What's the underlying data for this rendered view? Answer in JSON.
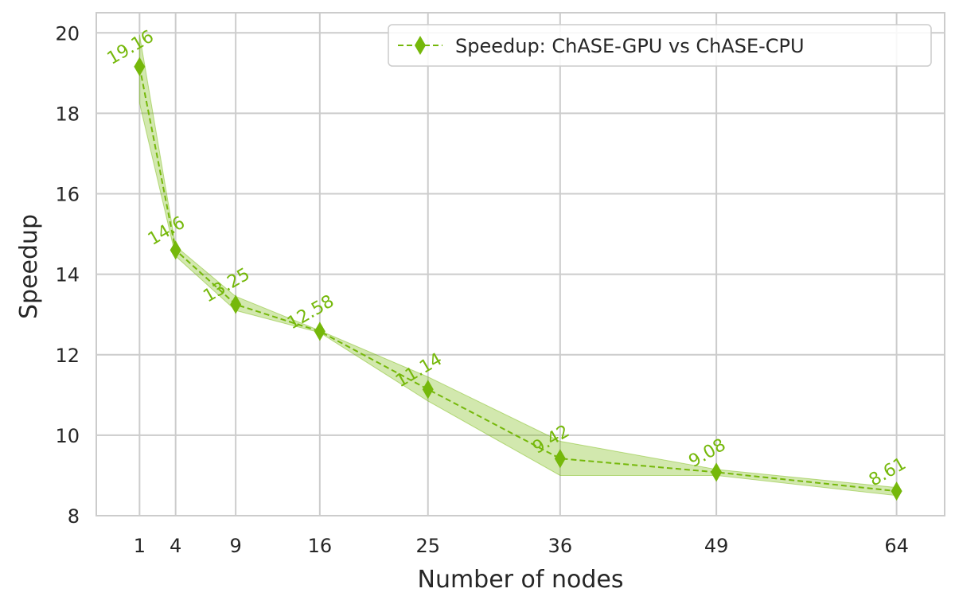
{
  "chart_data": {
    "type": "line",
    "title": "",
    "xlabel": "Number of nodes",
    "ylabel": "Speedup",
    "x": [
      1,
      4,
      9,
      16,
      25,
      36,
      49,
      64
    ],
    "xticks": [
      "1",
      "4",
      "9",
      "16",
      "25",
      "36",
      "49",
      "64"
    ],
    "yticks": [
      "8",
      "10",
      "12",
      "14",
      "16",
      "18",
      "20"
    ],
    "ylim": [
      8,
      20.5
    ],
    "xlim": [
      -2.6,
      68
    ],
    "grid": true,
    "legend_position": "top-right",
    "series": [
      {
        "name": "Speedup: ChASE-GPU vs ChASE-CPU",
        "color": "#75b80a",
        "line_style": "dashed",
        "marker": "diamond",
        "values": [
          19.16,
          14.6,
          13.25,
          12.58,
          11.14,
          9.42,
          9.08,
          8.61
        ],
        "labels": [
          "19.16",
          "14.6",
          "13.25",
          "12.58",
          "11.14",
          "9.42",
          "9.08",
          "8.61"
        ],
        "band_upper": [
          19.95,
          14.7,
          13.45,
          12.6,
          11.45,
          9.85,
          9.15,
          8.7
        ],
        "band_lower": [
          18.25,
          14.45,
          13.1,
          12.55,
          10.85,
          9.0,
          9.0,
          8.5
        ]
      }
    ]
  }
}
